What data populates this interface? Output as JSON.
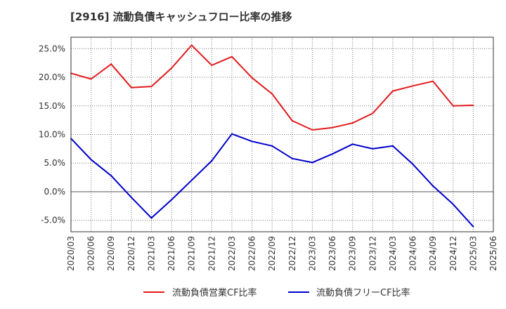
{
  "chart_data": {
    "type": "line",
    "title": "[2916]  流動負債キャッシュフロー比率の推移",
    "x": [
      "2020/03",
      "2020/06",
      "2020/09",
      "2020/12",
      "2021/03",
      "2021/06",
      "2021/09",
      "2021/12",
      "2022/03",
      "2022/06",
      "2022/09",
      "2022/12",
      "2023/03",
      "2023/06",
      "2023/09",
      "2023/12",
      "2024/03",
      "2024/06",
      "2024/09",
      "2024/12",
      "2025/03",
      "2025/06"
    ],
    "yticks": [
      "-5.0%",
      "0.0%",
      "5.0%",
      "10.0%",
      "15.0%",
      "20.0%",
      "25.0%"
    ],
    "ytick_values": [
      -5,
      0,
      5,
      10,
      15,
      20,
      25
    ],
    "ylim": [
      -7,
      27
    ],
    "xlabel": "",
    "ylabel": "",
    "grid": true,
    "legend_position": "bottom",
    "series": [
      {
        "name": "流動負債営業CF比率",
        "color": "#e31a1c",
        "values": [
          20.7,
          19.7,
          22.3,
          18.2,
          18.4,
          21.6,
          25.6,
          22.1,
          23.6,
          19.9,
          17.1,
          12.4,
          10.8,
          11.2,
          12.0,
          13.7,
          17.6,
          18.5,
          19.3,
          15.0,
          15.1,
          null
        ]
      },
      {
        "name": "流動負債フリーCF比率",
        "color": "#0000cc",
        "values": [
          9.3,
          5.6,
          2.8,
          -1.0,
          -4.6,
          -1.4,
          2.0,
          5.4,
          10.1,
          8.8,
          8.0,
          5.8,
          5.1,
          6.6,
          8.3,
          7.5,
          8.0,
          4.8,
          1.0,
          -2.2,
          -6.1,
          null
        ]
      }
    ]
  }
}
